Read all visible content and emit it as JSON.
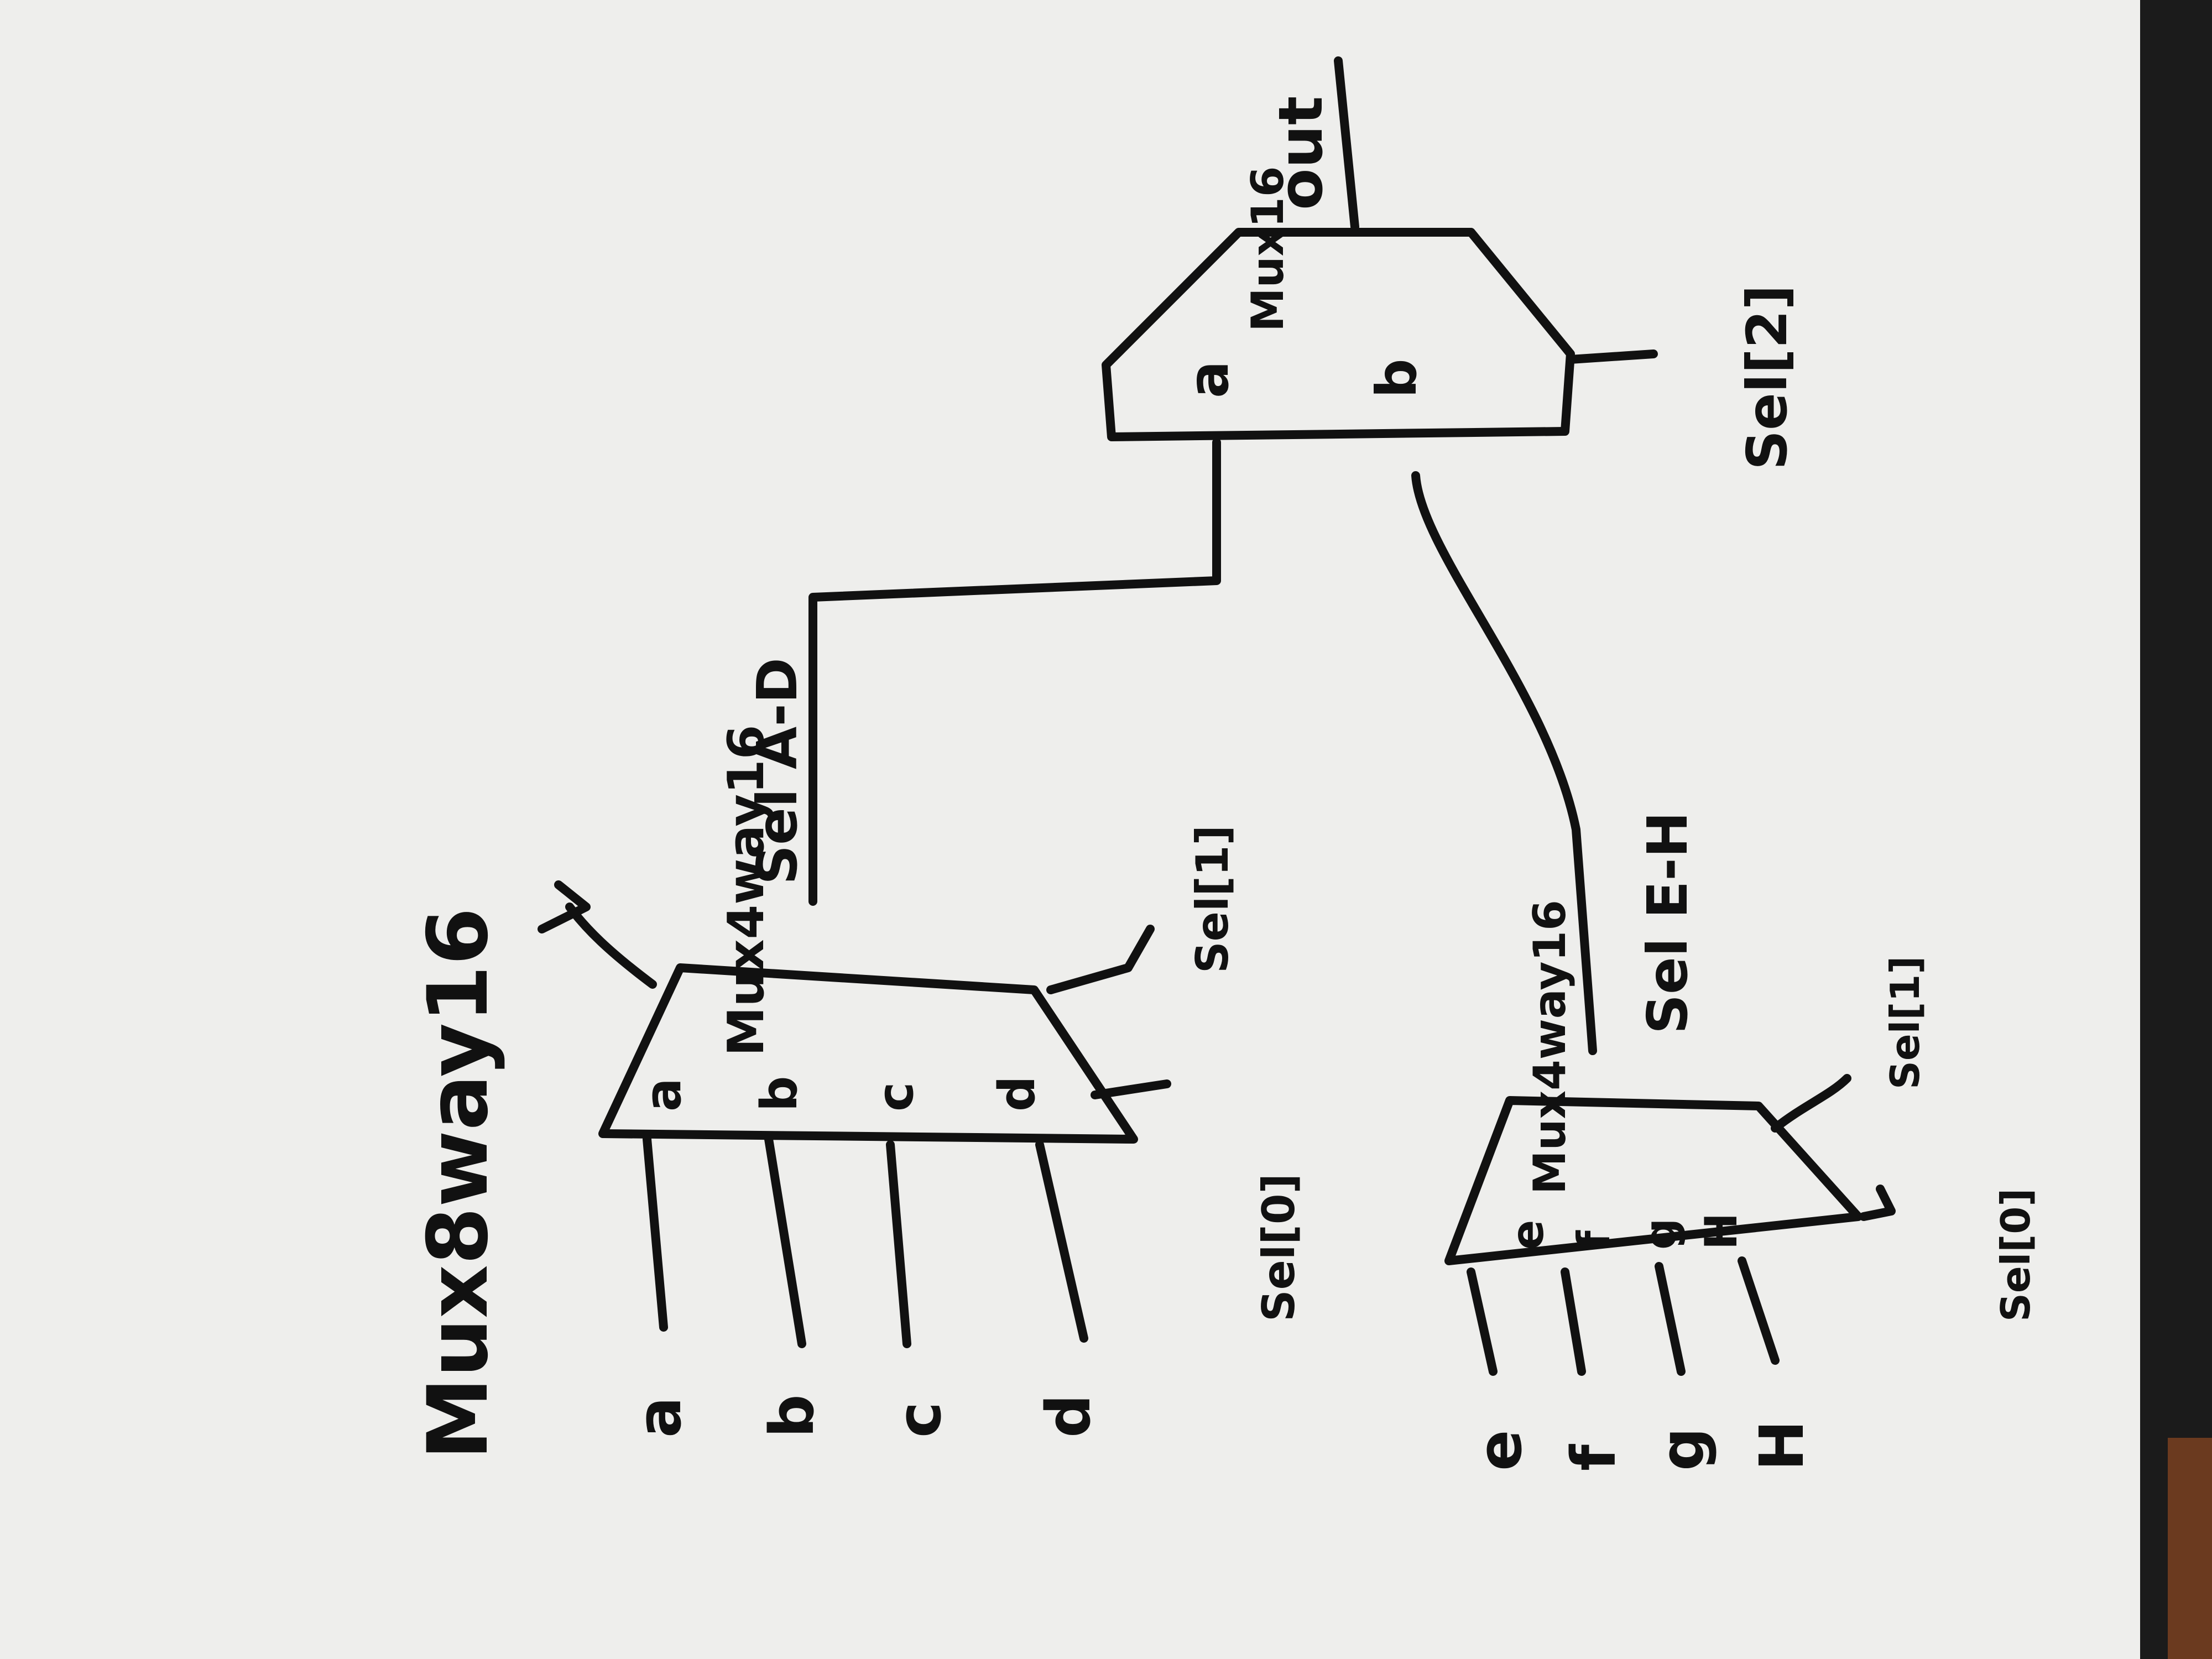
{
  "title": "Mux8way16",
  "output_label": "out",
  "top_mux": {
    "name": "Mux16",
    "in_a": "a",
    "in_b": "b",
    "sel": "Sel[2]"
  },
  "left_mux": {
    "name": "Mux4way16",
    "in_a": "a",
    "in_b": "b",
    "in_c": "c",
    "in_d": "d",
    "sel_low": "Sel[0]",
    "sel_high": "Sel[1]",
    "out_label": "Sel A-D"
  },
  "right_mux": {
    "name": "Mux4way16",
    "in_e": "e",
    "in_f": "f",
    "in_g": "g",
    "in_h": "H",
    "sel_low": "Sel[0]",
    "sel_high": "Sel[1]",
    "out_label": "Sel E-H"
  },
  "inputs_left": [
    "a",
    "b",
    "c",
    "d"
  ],
  "inputs_right": [
    "e",
    "f",
    "g",
    "H"
  ]
}
